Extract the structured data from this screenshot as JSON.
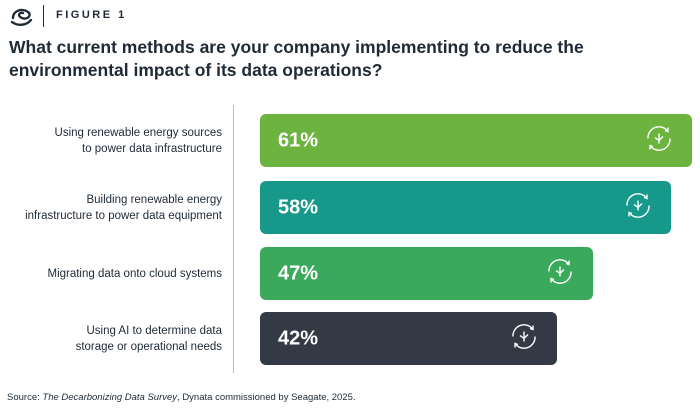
{
  "figure_label": "FIGURE 1",
  "chart_data": {
    "type": "bar",
    "orientation": "horizontal",
    "title": "What current methods are your company implementing to reduce the environmental impact of its data operations?",
    "categories": [
      "Using renewable energy sources to power data infrastructure",
      "Building renewable energy infrastructure to power data equipment",
      "Migrating data onto cloud systems",
      "Using AI to determine data storage or operational needs"
    ],
    "values": [
      61,
      58,
      47,
      42
    ],
    "value_labels": [
      "61%",
      "58%",
      "47%",
      "42%"
    ],
    "colors": [
      "#6cb33f",
      "#16998a",
      "#3aa95c",
      "#333a46"
    ]
  },
  "source": {
    "prefix": "Source: ",
    "title": "The Decarbonizing Data Survey",
    "suffix": ", Dynata commissioned by Seagate, 2025."
  }
}
